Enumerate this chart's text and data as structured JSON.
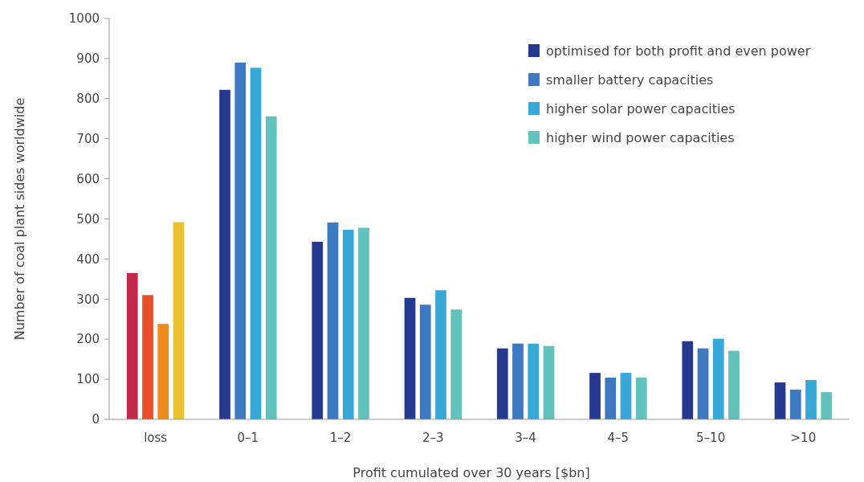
{
  "chart_data": {
    "type": "bar",
    "xlabel": "Profit cumulated over 30 years [$bn]",
    "ylabel": "Number of coal plant sides worldwide",
    "categories": [
      "loss",
      "0–1",
      "1–2",
      "2–3",
      "3–4",
      "4–5",
      "5–10",
      ">10"
    ],
    "series": [
      {
        "name": "optimised for both profit and even power",
        "color": "#253a8e",
        "colors": [
          "#c0294a",
          "#253a8e",
          "#253a8e",
          "#253a8e",
          "#253a8e",
          "#253a8e",
          "#253a8e",
          "#253a8e"
        ],
        "values": [
          365,
          822,
          443,
          303,
          177,
          116,
          195,
          92
        ]
      },
      {
        "name": "smaller battery capacities",
        "color": "#3d78c0",
        "colors": [
          "#e8502a",
          "#3d78c0",
          "#3d78c0",
          "#3d78c0",
          "#3d78c0",
          "#3d78c0",
          "#3d78c0",
          "#3d78c0"
        ],
        "values": [
          310,
          890,
          491,
          286,
          189,
          104,
          177,
          74
        ]
      },
      {
        "name": "higher solar power capacities",
        "color": "#37a8d8",
        "colors": [
          "#ef8a1c",
          "#37a8d8",
          "#37a8d8",
          "#37a8d8",
          "#37a8d8",
          "#37a8d8",
          "#37a8d8",
          "#37a8d8"
        ],
        "values": [
          238,
          877,
          473,
          322,
          189,
          116,
          201,
          98
        ]
      },
      {
        "name": "higher wind power capacities",
        "color": "#62c2bc",
        "colors": [
          "#e8c030",
          "#62c2bc",
          "#62c2bc",
          "#62c2bc",
          "#62c2bc",
          "#62c2bc",
          "#62c2bc",
          "#62c2bc"
        ],
        "values": [
          492,
          756,
          478,
          274,
          183,
          104,
          171,
          68
        ]
      }
    ],
    "ylim": [
      0,
      1000
    ],
    "yticks": [
      0,
      100,
      200,
      300,
      400,
      500,
      600,
      700,
      800,
      900,
      1000
    ],
    "grid": false,
    "legend": "top right"
  }
}
